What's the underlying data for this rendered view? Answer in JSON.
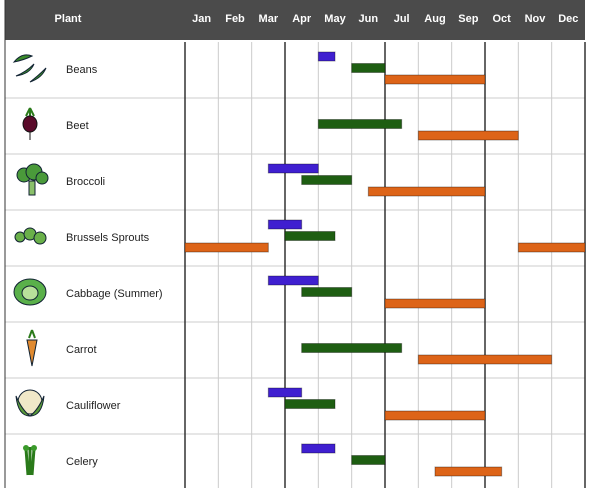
{
  "chart_data": {
    "type": "gantt",
    "header": "Plant",
    "categories": [
      "Jan",
      "Feb",
      "Mar",
      "Apr",
      "May",
      "Jun",
      "Jul",
      "Aug",
      "Sep",
      "Oct",
      "Nov",
      "Dec"
    ],
    "xlim": [
      0,
      12
    ],
    "bar_colors": [
      "#3f1fd0",
      "#1e5e12",
      "#dd6418"
    ],
    "rows": [
      {
        "plant": "Beans",
        "bars": [
          {
            "start": 4,
            "end": 4.5,
            "color": "#3f1fd0"
          },
          {
            "start": 5,
            "end": 6,
            "color": "#1e5e12"
          },
          {
            "start": 6,
            "end": 9,
            "color": "#dd6418"
          }
        ]
      },
      {
        "plant": "Beet",
        "bars": [
          {
            "start": 4,
            "end": 6.5,
            "color": "#1e5e12"
          },
          {
            "start": 7,
            "end": 10,
            "color": "#dd6418"
          }
        ]
      },
      {
        "plant": "Broccoli",
        "bars": [
          {
            "start": 2.5,
            "end": 4,
            "color": "#3f1fd0"
          },
          {
            "start": 3.5,
            "end": 5,
            "color": "#1e5e12"
          },
          {
            "start": 5.5,
            "end": 9,
            "color": "#dd6418"
          }
        ]
      },
      {
        "plant": "Brussels Sprouts",
        "bars": [
          {
            "start": 2.5,
            "end": 3.5,
            "color": "#3f1fd0"
          },
          {
            "start": 3,
            "end": 4.5,
            "color": "#1e5e12"
          },
          {
            "start": 0,
            "end": 2.5,
            "color": "#dd6418"
          },
          {
            "start": 10,
            "end": 12,
            "color": "#dd6418"
          }
        ]
      },
      {
        "plant": "Cabbage (Summer)",
        "bars": [
          {
            "start": 2.5,
            "end": 4,
            "color": "#3f1fd0"
          },
          {
            "start": 3.5,
            "end": 5,
            "color": "#1e5e12"
          },
          {
            "start": 6,
            "end": 9,
            "color": "#dd6418"
          }
        ]
      },
      {
        "plant": "Carrot",
        "bars": [
          {
            "start": 3.5,
            "end": 6.5,
            "color": "#1e5e12"
          },
          {
            "start": 7,
            "end": 11,
            "color": "#dd6418"
          }
        ]
      },
      {
        "plant": "Cauliflower",
        "bars": [
          {
            "start": 2.5,
            "end": 3.5,
            "color": "#3f1fd0"
          },
          {
            "start": 3,
            "end": 4.5,
            "color": "#1e5e12"
          },
          {
            "start": 6,
            "end": 9,
            "color": "#dd6418"
          }
        ]
      },
      {
        "plant": "Celery",
        "bars": [
          {
            "start": 3.5,
            "end": 4.5,
            "color": "#3f1fd0"
          },
          {
            "start": 5,
            "end": 6,
            "color": "#1e5e12"
          },
          {
            "start": 7.5,
            "end": 9.5,
            "color": "#dd6418"
          }
        ]
      }
    ]
  }
}
